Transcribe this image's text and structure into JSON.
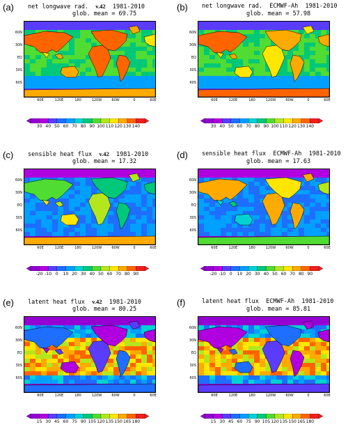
{
  "panels": [
    {
      "label": "(a)",
      "title": "net longwave rad.",
      "model": "v.42",
      "period": "1981-2010",
      "mean_label": "glob. mean =",
      "mean": "69.75",
      "field": "lw",
      "scale": 0
    },
    {
      "label": "(b)",
      "title": "net longwave rad.",
      "model": "ECMWF-Ah",
      "period": "1981-2010",
      "mean_label": "glob. mean =",
      "mean": "57.98",
      "field": "lw",
      "scale": 0
    },
    {
      "label": "(c)",
      "title": "sensible heat flux",
      "model": "v.42",
      "period": "1981-2010",
      "mean_label": "glob. mean =",
      "mean": "17.32",
      "field": "sh",
      "scale": 1
    },
    {
      "label": "(d)",
      "title": "sensible heat flux",
      "model": "ECMWF-Ah",
      "period": "1981-2010",
      "mean_label": "glob. mean =",
      "mean": "17.63",
      "field": "sh",
      "scale": 1
    },
    {
      "label": "(e)",
      "title": "latent heat flux",
      "model": "v.42",
      "period": "1981-2010",
      "mean_label": "glob. mean =",
      "mean": "80.25",
      "field": "lh",
      "scale": 2
    },
    {
      "label": "(f)",
      "title": "latent heat flux",
      "model": "ECMWF-Ah",
      "period": "1981-2010",
      "mean_label": "glob. mean =",
      "mean": "85.81",
      "field": "lh",
      "scale": 2
    }
  ],
  "lat_labels": [
    "60N",
    "30N",
    "EQ",
    "30S",
    "60S"
  ],
  "lon_labels": [
    "60E",
    "120E",
    "180",
    "120W",
    "60W",
    "0",
    "60E"
  ],
  "colorbars": [
    {
      "ticks": [
        "30",
        "40",
        "50",
        "60",
        "70",
        "80",
        "90",
        "100",
        "110",
        "120",
        "130",
        "140"
      ]
    },
    {
      "ticks": [
        "-20",
        "-10",
        "0",
        "10",
        "20",
        "30",
        "40",
        "50",
        "60",
        "70",
        "80",
        "90"
      ]
    },
    {
      "ticks": [
        "15",
        "30",
        "45",
        "60",
        "75",
        "90",
        "105",
        "120",
        "135",
        "150",
        "165",
        "180"
      ]
    }
  ],
  "palette": [
    "#9400d3",
    "#b000e0",
    "#5a3cff",
    "#1e6eff",
    "#00a0ff",
    "#00d2d2",
    "#00c878",
    "#50dc32",
    "#b4e61e",
    "#ffe600",
    "#ffaa00",
    "#ff6400",
    "#f01e1e"
  ]
}
